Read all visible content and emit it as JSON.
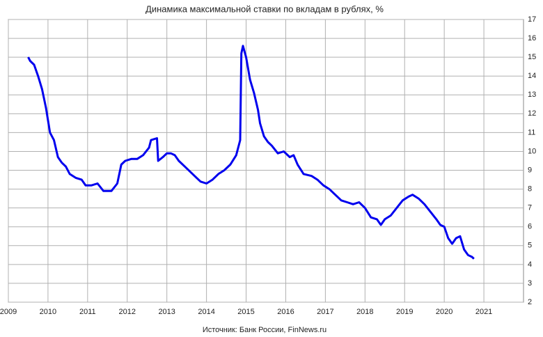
{
  "chart_data": {
    "type": "line",
    "title": "Динамика максимальной ставки по вкладам в рублях, %",
    "source": "Источник: Банк России, FinNews.ru",
    "xlim": [
      2009,
      2022
    ],
    "xticks": [
      2009,
      2010,
      2011,
      2012,
      2013,
      2014,
      2015,
      2016,
      2017,
      2018,
      2019,
      2020,
      2021
    ],
    "ylim": [
      2,
      17
    ],
    "yticks": [
      2,
      3,
      4,
      5,
      6,
      7,
      8,
      9,
      10,
      11,
      12,
      13,
      14,
      15,
      16,
      17
    ],
    "grid": true,
    "series": [
      {
        "color": "#0000ee",
        "x": [
          2009.5,
          2009.55,
          2009.65,
          2009.75,
          2009.85,
          2009.95,
          2010.05,
          2010.15,
          2010.25,
          2010.35,
          2010.45,
          2010.55,
          2010.7,
          2010.85,
          2010.95,
          2011.1,
          2011.25,
          2011.4,
          2011.6,
          2011.75,
          2011.85,
          2011.95,
          2012.1,
          2012.25,
          2012.4,
          2012.55,
          2012.6,
          2012.75,
          2012.78,
          2012.9,
          2013.0,
          2013.1,
          2013.2,
          2013.3,
          2013.45,
          2013.6,
          2013.75,
          2013.85,
          2014.0,
          2014.15,
          2014.3,
          2014.45,
          2014.6,
          2014.75,
          2014.85,
          2014.88,
          2014.92,
          2015.0,
          2015.1,
          2015.2,
          2015.3,
          2015.35,
          2015.45,
          2015.55,
          2015.65,
          2015.8,
          2015.95,
          2016.1,
          2016.2,
          2016.3,
          2016.45,
          2016.65,
          2016.8,
          2016.95,
          2017.1,
          2017.25,
          2017.4,
          2017.55,
          2017.7,
          2017.85,
          2018.0,
          2018.15,
          2018.3,
          2018.4,
          2018.5,
          2018.65,
          2018.8,
          2018.95,
          2019.1,
          2019.2,
          2019.35,
          2019.5,
          2019.65,
          2019.8,
          2019.9,
          2020.0,
          2020.1,
          2020.2,
          2020.3,
          2020.4,
          2020.5,
          2020.6,
          2020.7,
          2020.75
        ],
        "values": [
          15.0,
          14.8,
          14.6,
          14.0,
          13.3,
          12.3,
          11.0,
          10.6,
          9.7,
          9.4,
          9.2,
          8.8,
          8.6,
          8.5,
          8.2,
          8.2,
          8.3,
          7.9,
          7.9,
          8.3,
          9.3,
          9.5,
          9.6,
          9.6,
          9.8,
          10.2,
          10.6,
          10.7,
          9.5,
          9.7,
          9.9,
          9.9,
          9.8,
          9.5,
          9.2,
          8.9,
          8.6,
          8.4,
          8.3,
          8.5,
          8.8,
          9.0,
          9.3,
          9.8,
          10.6,
          15.2,
          15.6,
          15.0,
          13.8,
          13.1,
          12.2,
          11.5,
          10.8,
          10.5,
          10.3,
          9.9,
          10.0,
          9.7,
          9.8,
          9.3,
          8.8,
          8.7,
          8.5,
          8.2,
          8.0,
          7.7,
          7.4,
          7.3,
          7.2,
          7.3,
          7.0,
          6.5,
          6.4,
          6.1,
          6.4,
          6.6,
          7.0,
          7.4,
          7.6,
          7.7,
          7.5,
          7.2,
          6.8,
          6.4,
          6.1,
          6.0,
          5.4,
          5.1,
          5.4,
          5.5,
          4.8,
          4.5,
          4.4,
          4.3
        ]
      }
    ]
  }
}
